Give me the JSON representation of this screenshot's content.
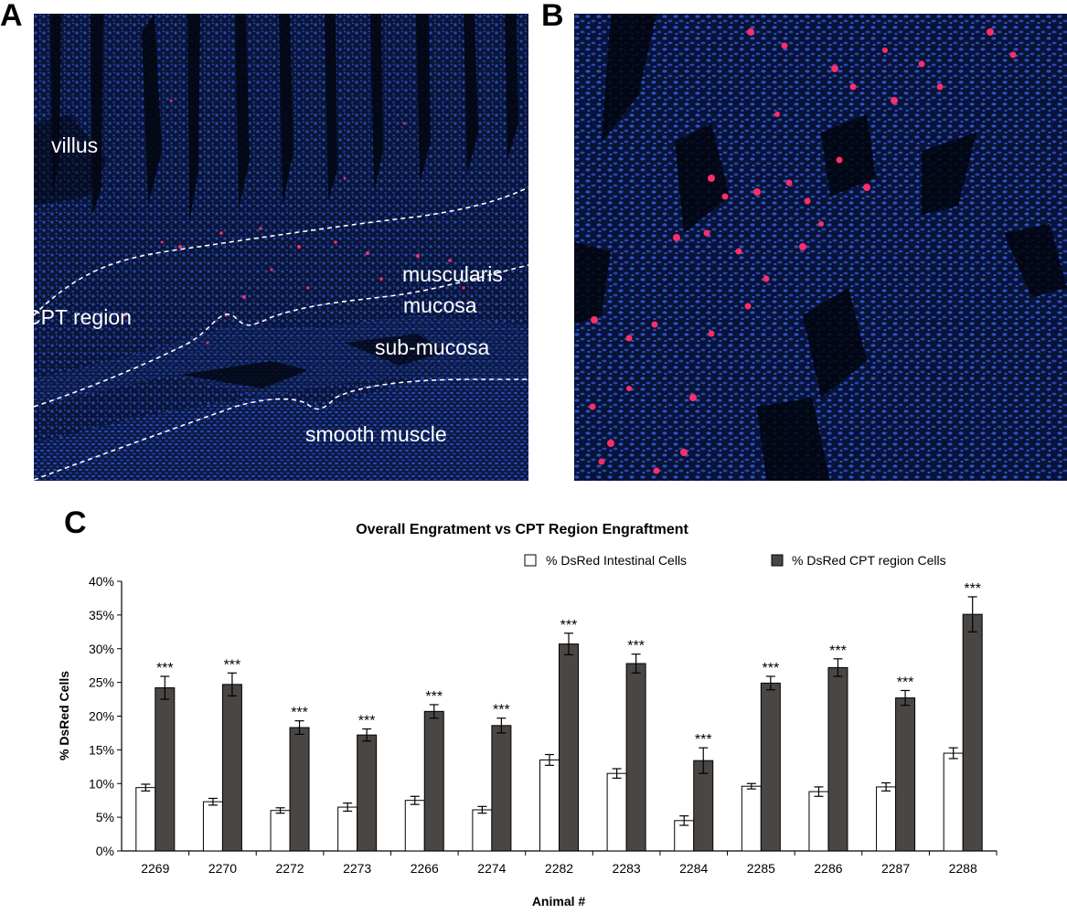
{
  "panels": {
    "a": {
      "letter": "A",
      "labels": {
        "villus": "villus",
        "cpt_region": "CPT region",
        "muscularis_line1": "muscularis",
        "muscularis_line2": "mucosa",
        "sub_mucosa": "sub-mucosa",
        "smooth_muscle": "smooth muscle"
      }
    },
    "b": {
      "letter": "B"
    },
    "c": {
      "letter": "C"
    }
  },
  "colors": {
    "nuclei": "#1f3ea8",
    "tissue_bg": "#07102e",
    "dsred": "#ff2d6a",
    "bar_intestinal": "#ffffff",
    "bar_cpt": "#4a4643"
  },
  "chart_data": {
    "type": "bar",
    "title": "Overall Engratment vs CPT Region Engraftment",
    "xlabel": "Animal #",
    "ylabel": "% DsRed Cells",
    "ylim": [
      0,
      40
    ],
    "yticks": [
      "0%",
      "5%",
      "10%",
      "15%",
      "20%",
      "25%",
      "30%",
      "35%",
      "40%"
    ],
    "grid": false,
    "legend_position": "top-right",
    "categories": [
      "2269",
      "2270",
      "2272",
      "2273",
      "2266",
      "2274",
      "2282",
      "2283",
      "2284",
      "2285",
      "2286",
      "2287",
      "2288"
    ],
    "series": [
      {
        "name": "% DsRed Intestinal Cells",
        "values": [
          9.4,
          7.3,
          6.0,
          6.5,
          7.5,
          6.1,
          13.5,
          11.5,
          4.5,
          9.6,
          8.8,
          9.5,
          14.5
        ],
        "errors": [
          0.5,
          0.5,
          0.4,
          0.6,
          0.6,
          0.5,
          0.8,
          0.7,
          0.7,
          0.4,
          0.7,
          0.6,
          0.8
        ]
      },
      {
        "name": "% DsRed CPT region Cells",
        "values": [
          24.2,
          24.7,
          18.3,
          17.2,
          20.7,
          18.6,
          30.7,
          27.8,
          13.4,
          24.9,
          27.2,
          22.7,
          35.1
        ],
        "errors": [
          1.7,
          1.7,
          1.0,
          0.9,
          1.0,
          1.1,
          1.6,
          1.4,
          1.9,
          1.0,
          1.3,
          1.1,
          2.6
        ]
      }
    ],
    "significance": [
      "***",
      "***",
      "***",
      "***",
      "***",
      "***",
      "***",
      "***",
      "***",
      "***",
      "***",
      "***",
      "***"
    ]
  }
}
